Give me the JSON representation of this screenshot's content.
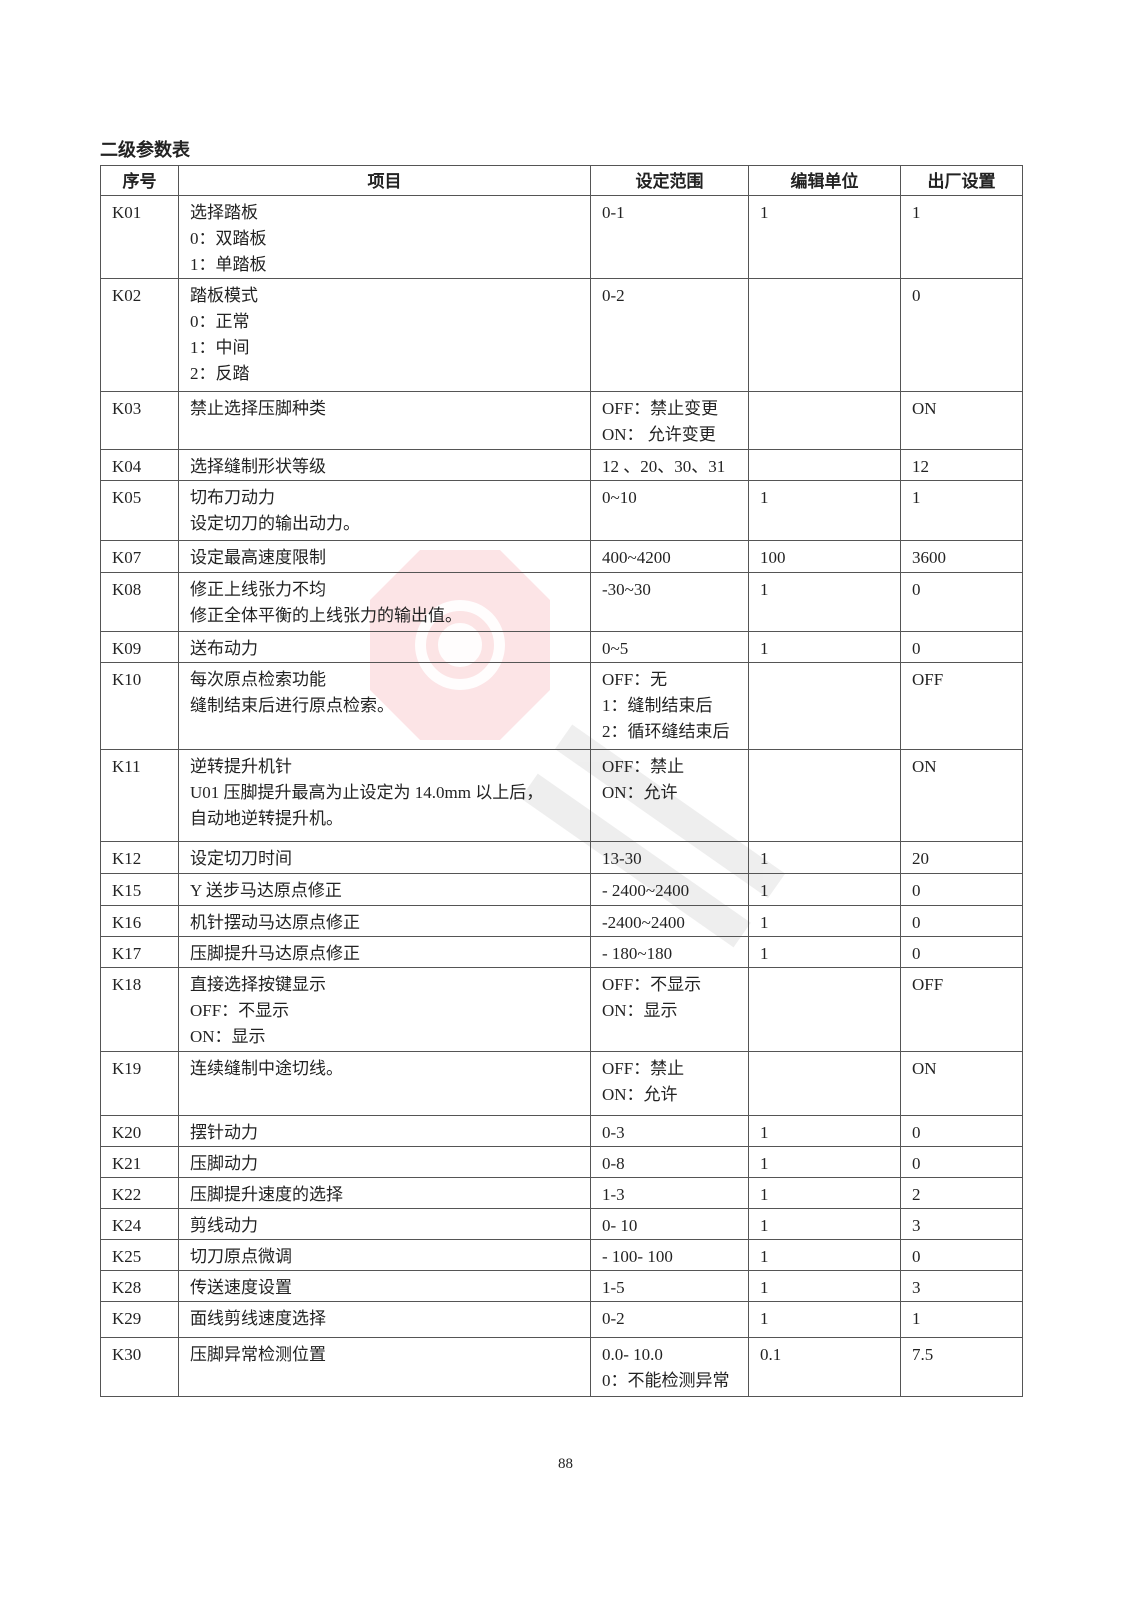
{
  "title": "二级参数表",
  "headers": [
    "序号",
    "项目",
    "设定范围",
    "编辑单位",
    "出厂设置"
  ],
  "rows": [
    {
      "id": "K01",
      "item": [
        "选择踏板",
        "0：双踏板",
        "1：单踏板"
      ],
      "range": [
        "0-1"
      ],
      "unit": "1",
      "default": "1"
    },
    {
      "id": "K02",
      "item": [
        "踏板模式",
        "0：正常",
        "1：中间",
        "2：反踏"
      ],
      "range": [
        "0-2"
      ],
      "unit": "",
      "default": "0"
    },
    {
      "id": "K03",
      "item": [
        "禁止选择压脚种类"
      ],
      "range": [
        "OFF：禁止变更",
        "ON：  允许变更"
      ],
      "unit": "",
      "default": "ON"
    },
    {
      "id": "K04",
      "item": [
        "选择缝制形状等级"
      ],
      "range": [
        "12 、20、30、31"
      ],
      "unit": "",
      "default": "12"
    },
    {
      "id": "K05",
      "item": [
        "切布刀动力",
        "设定切刀的输出动力。"
      ],
      "range": [
        "0~10"
      ],
      "unit": "1",
      "default": "1"
    },
    {
      "id": "K07",
      "item": [
        "设定最高速度限制"
      ],
      "range": [
        "400~4200"
      ],
      "unit": "100",
      "default": "3600"
    },
    {
      "id": "K08",
      "item": [
        "修正上线张力不均",
        "修正全体平衡的上线张力的输出值。"
      ],
      "range": [
        "-30~30"
      ],
      "unit": "1",
      "default": "0"
    },
    {
      "id": "K09",
      "item": [
        "送布动力"
      ],
      "range": [
        "0~5"
      ],
      "unit": "1",
      "default": "0"
    },
    {
      "id": "K10",
      "item": [
        "每次原点检索功能",
        "缝制结束后进行原点检索。"
      ],
      "range": [
        "OFF：无",
        "1：缝制结束后",
        "2：循环缝结束后"
      ],
      "unit": "",
      "default": "OFF"
    },
    {
      "id": "K11",
      "item": [
        "逆转提升机针",
        "U01 压脚提升最高为止设定为 14.0mm 以上后，",
        " 自动地逆转提升机。"
      ],
      "range": [
        "OFF：禁止",
        "ON：允许"
      ],
      "unit": "",
      "default": "ON"
    },
    {
      "id": "K12",
      "item": [
        "设定切刀时间"
      ],
      "range": [
        "13-30"
      ],
      "unit": "1",
      "default": "20"
    },
    {
      "id": "K15",
      "item": [
        "Y 送步马达原点修正"
      ],
      "range": [
        "- 2400~2400"
      ],
      "unit": "1",
      "default": "0"
    },
    {
      "id": "K16",
      "item": [
        "机针摆动马达原点修正"
      ],
      "range": [
        "-2400~2400"
      ],
      "unit": "1",
      "default": "0"
    },
    {
      "id": "K17",
      "item": [
        "压脚提升马达原点修正"
      ],
      "range": [
        "- 180~180"
      ],
      "unit": "1",
      "default": "0"
    },
    {
      "id": "K18",
      "item": [
        "直接选择按键显示",
        "OFF：不显示",
        "ON：显示"
      ],
      "range": [
        "OFF：不显示",
        "ON：显示"
      ],
      "unit": "",
      "default": "OFF"
    },
    {
      "id": "K19",
      "item": [
        "连续缝制中途切线。"
      ],
      "range": [
        "OFF：禁止",
        "ON：允许"
      ],
      "unit": "",
      "default": "ON"
    },
    {
      "id": "K20",
      "item": [
        "摆针动力"
      ],
      "range": [
        "0-3"
      ],
      "unit": "1",
      "default": "0"
    },
    {
      "id": "K21",
      "item": [
        "压脚动力"
      ],
      "range": [
        "0-8"
      ],
      "unit": "1",
      "default": "0"
    },
    {
      "id": "K22",
      "item": [
        "压脚提升速度的选择"
      ],
      "range": [
        "1-3"
      ],
      "unit": "1",
      "default": "2"
    },
    {
      "id": "K24",
      "item": [
        "剪线动力"
      ],
      "range": [
        "0- 10"
      ],
      "unit": "1",
      "default": "3"
    },
    {
      "id": "K25",
      "item": [
        "切刀原点微调"
      ],
      "range": [
        "- 100- 100"
      ],
      "unit": "1",
      "default": "0"
    },
    {
      "id": "K28",
      "item": [
        "传送速度设置"
      ],
      "range": [
        "1-5"
      ],
      "unit": "1",
      "default": "3"
    },
    {
      "id": "K29",
      "item": [
        "面线剪线速度选择"
      ],
      "range": [
        "0-2"
      ],
      "unit": "1",
      "default": "1"
    },
    {
      "id": "K30",
      "item": [
        "压脚异常检测位置"
      ],
      "range": [
        "0.0- 10.0",
        "0：不能检测异常"
      ],
      "unit": "0.1",
      "default": "7.5"
    }
  ],
  "page_number": "88",
  "watermark_color": "#e8323c"
}
